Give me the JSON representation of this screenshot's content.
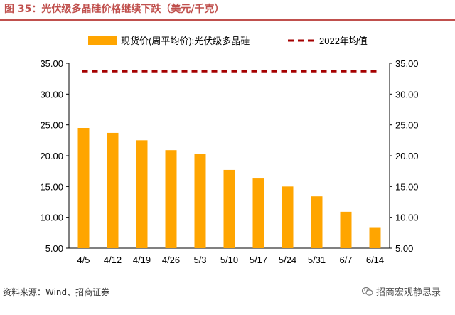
{
  "header": {
    "title": "图 35：光伏级多晶硅价格继续下跌（美元/千克）"
  },
  "footer": {
    "source": "资料来源：Wind、招商证券",
    "watermark": "招商宏观静思录",
    "watermark_icon": "wechat-icon"
  },
  "chart_data": {
    "type": "bar",
    "categories": [
      "4/5",
      "4/12",
      "4/19",
      "4/26",
      "5/3",
      "5/10",
      "5/17",
      "5/24",
      "5/31",
      "6/7",
      "6/14"
    ],
    "series": [
      {
        "name": "现货价(周平均价):光伏级多晶硅",
        "type": "bar",
        "color": "#ffa500",
        "values": [
          24.5,
          23.7,
          22.5,
          20.9,
          20.3,
          17.7,
          16.3,
          15.0,
          13.4,
          10.9,
          8.4
        ]
      },
      {
        "name": "2022年均值",
        "type": "dashed-line",
        "color": "#a50000",
        "value": 33.7
      }
    ],
    "yleft": {
      "ticks": [
        "5.00",
        "10.00",
        "15.00",
        "20.00",
        "25.00",
        "30.00",
        "35.00"
      ],
      "lim": [
        5,
        35
      ]
    },
    "yright": {
      "ticks": [
        "5.00",
        "10.00",
        "15.00",
        "20.00",
        "25.00",
        "30.00",
        "35.00"
      ],
      "lim": [
        5,
        35
      ]
    },
    "legend": "top",
    "grid": false
  }
}
